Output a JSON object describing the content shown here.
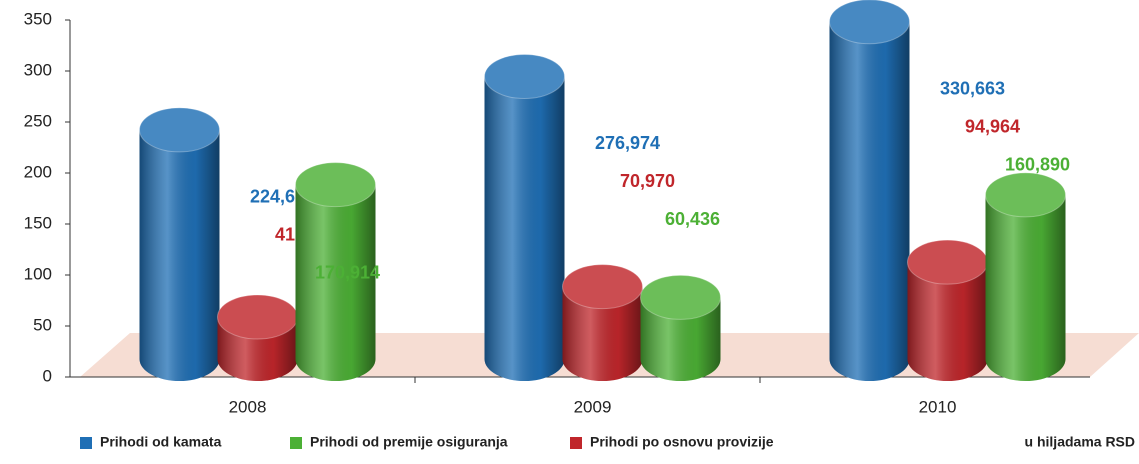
{
  "chart_data": {
    "type": "bar",
    "categories": [
      "2008",
      "2009",
      "2010"
    ],
    "series": [
      {
        "name": "Prihodi od kamata",
        "color": "#1f6fb5",
        "values": [
          224.653,
          276.974,
          330.663
        ],
        "value_labels": [
          "224,653",
          "276,974",
          "330,663"
        ]
      },
      {
        "name": "Prihodi po osnovu provizije",
        "color": "#c0262b",
        "values": [
          41.189,
          70.97,
          94.964
        ],
        "value_labels": [
          "41,189",
          "70,970",
          "94,964"
        ]
      },
      {
        "name": "Prihodi od premije osiguranja",
        "color": "#4cb035",
        "values": [
          170.914,
          60.436,
          160.89
        ],
        "value_labels": [
          "170,914",
          "60,436",
          "160,890"
        ]
      }
    ],
    "ylim": [
      0,
      350
    ],
    "yticks": [
      0,
      50,
      100,
      150,
      200,
      250,
      300,
      350
    ],
    "unit_note": "u hiljadama RSD"
  }
}
